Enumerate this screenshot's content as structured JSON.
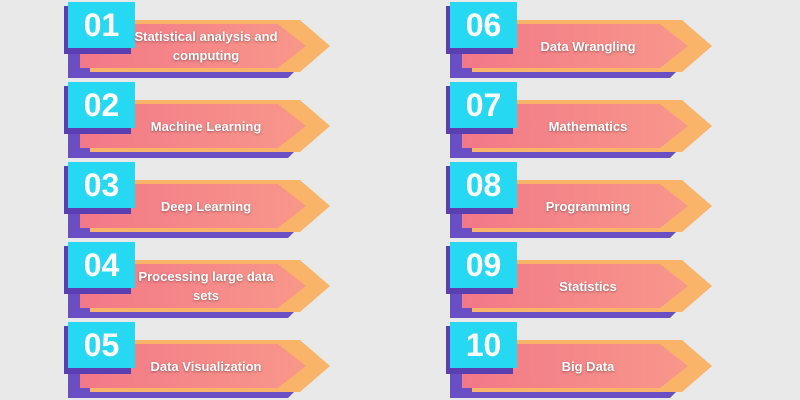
{
  "items": [
    {
      "number": "01",
      "label": "Statistical analysis and computing"
    },
    {
      "number": "02",
      "label": "Machine Learning"
    },
    {
      "number": "03",
      "label": "Deep Learning"
    },
    {
      "number": "04",
      "label": "Processing large data sets"
    },
    {
      "number": "05",
      "label": "Data Visualization"
    },
    {
      "number": "06",
      "label": "Data Wrangling"
    },
    {
      "number": "07",
      "label": "Mathematics"
    },
    {
      "number": "08",
      "label": "Programming"
    },
    {
      "number": "09",
      "label": "Statistics"
    },
    {
      "number": "10",
      "label": "Big Data"
    }
  ]
}
